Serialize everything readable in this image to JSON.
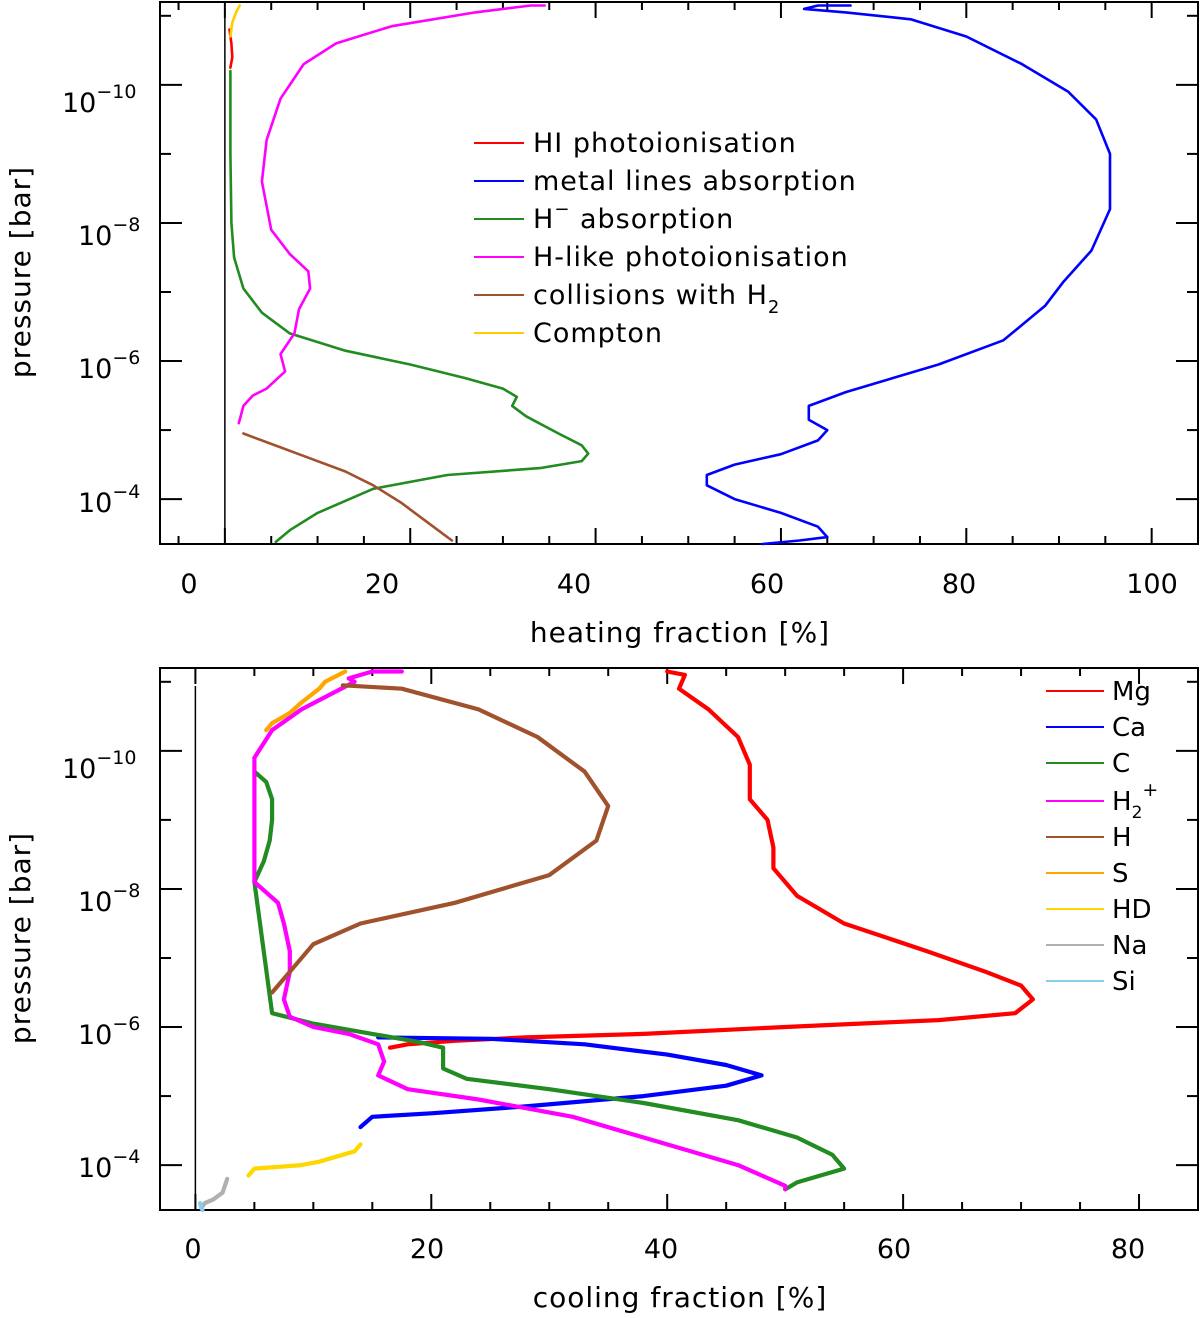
{
  "chart_data": [
    {
      "type": "line",
      "id": "heating",
      "xlabel": "heating fraction [%]",
      "ylabel": "pressure [bar]",
      "xlim": [
        -7,
        105
      ],
      "ylim_log10": [
        -11.2,
        -3.35
      ],
      "y_scale": "log",
      "xticks": [
        0,
        20,
        40,
        60,
        80,
        100
      ],
      "xtick_labels": [
        "0",
        "20",
        "40",
        "60",
        "80",
        "100"
      ],
      "yticks": [
        -10,
        -8,
        -6,
        -4
      ],
      "ytick_labels": [
        {
          "base": "10",
          "exp": "−10"
        },
        {
          "base": "10",
          "exp": "−8"
        },
        {
          "base": "10",
          "exp": "−6"
        },
        {
          "base": "10",
          "exp": "−4"
        }
      ],
      "reference_line_x": 0,
      "legend_position": "upper-center",
      "series": [
        {
          "name": "HI photoionisation",
          "label": "HI photoionisation",
          "color": "#ff0000",
          "points": [
            [
              0.5,
              -10.8
            ],
            [
              0.7,
              -10.6
            ],
            [
              0.8,
              -10.4
            ],
            [
              0.6,
              -10.25
            ]
          ]
        },
        {
          "name": "metal lines absorption",
          "label": "metal lines absorption",
          "color": "#0000ff",
          "points": [
            [
              67.5,
              -11.15
            ],
            [
              64,
              -11.15
            ],
            [
              62.5,
              -11.1
            ],
            [
              67,
              -11.05
            ],
            [
              74,
              -10.95
            ],
            [
              80,
              -10.7
            ],
            [
              86,
              -10.3
            ],
            [
              91,
              -9.9
            ],
            [
              94,
              -9.5
            ],
            [
              95.5,
              -9.0
            ],
            [
              95.5,
              -8.2
            ],
            [
              93.5,
              -7.6
            ],
            [
              90.5,
              -7.15
            ],
            [
              88.5,
              -6.8
            ],
            [
              84,
              -6.3
            ],
            [
              77,
              -5.95
            ],
            [
              72,
              -5.75
            ],
            [
              67,
              -5.55
            ],
            [
              63,
              -5.35
            ],
            [
              63,
              -5.15
            ],
            [
              65,
              -5.0
            ],
            [
              64,
              -4.85
            ],
            [
              60,
              -4.65
            ],
            [
              55,
              -4.5
            ],
            [
              52,
              -4.35
            ],
            [
              52,
              -4.2
            ],
            [
              55,
              -4.0
            ],
            [
              60,
              -3.8
            ],
            [
              64,
              -3.6
            ],
            [
              65,
              -3.45
            ],
            [
              62,
              -3.4
            ],
            [
              58,
              -3.35
            ]
          ]
        },
        {
          "name": "H- absorption",
          "label_main": "H",
          "label_sup": "−",
          "label_rest": " absorption",
          "color": "#228b22",
          "points": [
            [
              0.6,
              -10.2
            ],
            [
              0.6,
              -9.0
            ],
            [
              0.7,
              -8.0
            ],
            [
              1.0,
              -7.5
            ],
            [
              2.0,
              -7.05
            ],
            [
              4.0,
              -6.7
            ],
            [
              7.0,
              -6.4
            ],
            [
              13.0,
              -6.15
            ],
            [
              20.0,
              -5.95
            ],
            [
              26.0,
              -5.75
            ],
            [
              30.0,
              -5.6
            ],
            [
              31.5,
              -5.48
            ],
            [
              31.0,
              -5.35
            ],
            [
              32.5,
              -5.2
            ],
            [
              36.0,
              -4.95
            ],
            [
              38.5,
              -4.78
            ],
            [
              39.2,
              -4.66
            ],
            [
              38.5,
              -4.55
            ],
            [
              34.0,
              -4.45
            ],
            [
              24.0,
              -4.35
            ],
            [
              16.0,
              -4.15
            ],
            [
              10.0,
              -3.8
            ],
            [
              7.0,
              -3.55
            ],
            [
              5.5,
              -3.38
            ]
          ]
        },
        {
          "name": "H-like photoionisation",
          "label": "H-like photoionisation",
          "color": "#ff00ff",
          "points": [
            [
              34.5,
              -11.15
            ],
            [
              33.0,
              -11.15
            ],
            [
              27.0,
              -11.05
            ],
            [
              18.0,
              -10.85
            ],
            [
              12.0,
              -10.6
            ],
            [
              8.5,
              -10.3
            ],
            [
              6.0,
              -9.8
            ],
            [
              4.5,
              -9.2
            ],
            [
              4.0,
              -8.6
            ],
            [
              5.0,
              -7.9
            ],
            [
              7.0,
              -7.55
            ],
            [
              9.0,
              -7.3
            ],
            [
              9.2,
              -7.05
            ],
            [
              8.0,
              -6.75
            ],
            [
              7.5,
              -6.4
            ],
            [
              6.0,
              -6.1
            ],
            [
              6.5,
              -5.85
            ],
            [
              4.5,
              -5.6
            ],
            [
              3.0,
              -5.5
            ],
            [
              2.0,
              -5.35
            ],
            [
              1.5,
              -5.1
            ]
          ]
        },
        {
          "name": "collisions with H2",
          "label_main": "collisions with H",
          "label_sub": "2",
          "color": "#a0522d",
          "points": [
            [
              2.0,
              -4.95
            ],
            [
              5.0,
              -4.8
            ],
            [
              9.0,
              -4.6
            ],
            [
              13.0,
              -4.4
            ],
            [
              16.0,
              -4.2
            ],
            [
              19.0,
              -3.95
            ],
            [
              22.0,
              -3.65
            ],
            [
              24.5,
              -3.4
            ]
          ]
        },
        {
          "name": "Compton",
          "label": "Compton",
          "color": "#ffcc00",
          "points": [
            [
              0.6,
              -10.7
            ],
            [
              0.8,
              -10.9
            ],
            [
              1.2,
              -11.05
            ],
            [
              1.6,
              -11.15
            ]
          ]
        }
      ]
    },
    {
      "type": "line",
      "id": "cooling",
      "xlabel": "cooling fraction [%]",
      "ylabel": "pressure [bar]",
      "xlim": [
        -3,
        85
      ],
      "ylim_log10": [
        -11.2,
        -3.35
      ],
      "y_scale": "log",
      "xticks": [
        0,
        20,
        40,
        60,
        80
      ],
      "xtick_labels": [
        "0",
        "20",
        "40",
        "60",
        "80"
      ],
      "yticks": [
        -10,
        -8,
        -6,
        -4
      ],
      "ytick_labels": [
        {
          "base": "10",
          "exp": "−10"
        },
        {
          "base": "10",
          "exp": "−8"
        },
        {
          "base": "10",
          "exp": "−6"
        },
        {
          "base": "10",
          "exp": "−4"
        }
      ],
      "reference_line_x": 0,
      "legend_position": "upper-right",
      "series": [
        {
          "name": "Mg",
          "label": "Mg",
          "color": "#ff0000",
          "points": [
            [
              40.0,
              -11.15
            ],
            [
              41.5,
              -11.1
            ],
            [
              41.0,
              -10.9
            ],
            [
              43.5,
              -10.6
            ],
            [
              46.0,
              -10.2
            ],
            [
              47.0,
              -9.8
            ],
            [
              47.0,
              -9.3
            ],
            [
              48.5,
              -9.0
            ],
            [
              49.0,
              -8.6
            ],
            [
              49.0,
              -8.3
            ],
            [
              51.0,
              -7.9
            ],
            [
              55.0,
              -7.5
            ],
            [
              62.0,
              -7.1
            ],
            [
              67.0,
              -6.8
            ],
            [
              70.0,
              -6.6
            ],
            [
              71.0,
              -6.4
            ],
            [
              69.5,
              -6.2
            ],
            [
              63.0,
              -6.1
            ],
            [
              50.0,
              -6.0
            ],
            [
              38.0,
              -5.9
            ],
            [
              28.0,
              -5.85
            ],
            [
              22.0,
              -5.8
            ],
            [
              18.0,
              -5.75
            ],
            [
              16.5,
              -5.7
            ]
          ]
        },
        {
          "name": "Ca",
          "label": "Ca",
          "color": "#0000ff",
          "points": [
            [
              15.5,
              -5.85
            ],
            [
              25.0,
              -5.83
            ],
            [
              33.0,
              -5.75
            ],
            [
              40.0,
              -5.6
            ],
            [
              45.0,
              -5.45
            ],
            [
              48.0,
              -5.3
            ],
            [
              45.0,
              -5.15
            ],
            [
              38.0,
              -5.0
            ],
            [
              28.0,
              -4.85
            ],
            [
              20.0,
              -4.75
            ],
            [
              15.0,
              -4.7
            ],
            [
              14.0,
              -4.55
            ]
          ]
        },
        {
          "name": "C",
          "label": "C",
          "color": "#228b22",
          "points": [
            [
              5.0,
              -9.7
            ],
            [
              6.0,
              -9.55
            ],
            [
              6.5,
              -9.3
            ],
            [
              6.5,
              -9.0
            ],
            [
              6.3,
              -8.7
            ],
            [
              5.8,
              -8.4
            ],
            [
              5.0,
              -8.1
            ],
            [
              6.5,
              -6.2
            ],
            [
              10.0,
              -6.05
            ],
            [
              15.0,
              -5.9
            ],
            [
              19.0,
              -5.78
            ],
            [
              21.0,
              -5.7
            ],
            [
              21.0,
              -5.4
            ],
            [
              23.0,
              -5.25
            ],
            [
              30.0,
              -5.1
            ],
            [
              38.0,
              -4.9
            ],
            [
              46.0,
              -4.65
            ],
            [
              51.0,
              -4.4
            ],
            [
              54.0,
              -4.15
            ],
            [
              55.0,
              -3.95
            ],
            [
              53.0,
              -3.85
            ],
            [
              51.0,
              -3.75
            ],
            [
              50.0,
              -3.65
            ]
          ]
        },
        {
          "name": "H2+",
          "label_main": "H",
          "label_sub": "2",
          "label_sup": "+",
          "color": "#ff00ff",
          "points": [
            [
              17.5,
              -11.15
            ],
            [
              15.0,
              -11.15
            ],
            [
              13.0,
              -11.05
            ],
            [
              13.5,
              -11.0
            ],
            [
              9.0,
              -10.6
            ],
            [
              6.5,
              -10.3
            ],
            [
              5.0,
              -9.9
            ],
            [
              5.0,
              -9.7
            ],
            [
              5.0,
              -8.1
            ],
            [
              7.0,
              -7.8
            ],
            [
              7.5,
              -7.5
            ],
            [
              8.0,
              -7.1
            ],
            [
              8.0,
              -6.8
            ],
            [
              7.5,
              -6.4
            ],
            [
              8.0,
              -6.15
            ],
            [
              10.0,
              -6.0
            ],
            [
              13.0,
              -5.9
            ],
            [
              15.5,
              -5.75
            ],
            [
              16.0,
              -5.5
            ],
            [
              15.5,
              -5.3
            ],
            [
              18.0,
              -5.1
            ],
            [
              24.0,
              -4.95
            ],
            [
              32.0,
              -4.7
            ],
            [
              40.0,
              -4.3
            ],
            [
              46.0,
              -4.0
            ],
            [
              50.0,
              -3.7
            ],
            [
              50.0,
              -3.65
            ]
          ]
        },
        {
          "name": "H",
          "label": "H",
          "color": "#a0522d",
          "points": [
            [
              12.5,
              -10.95
            ],
            [
              17.5,
              -10.9
            ],
            [
              24.0,
              -10.6
            ],
            [
              29.0,
              -10.2
            ],
            [
              33.0,
              -9.7
            ],
            [
              35.0,
              -9.2
            ],
            [
              34.0,
              -8.7
            ],
            [
              30.0,
              -8.2
            ],
            [
              22.0,
              -7.8
            ],
            [
              14.0,
              -7.5
            ],
            [
              10.0,
              -7.2
            ],
            [
              8.0,
              -6.8
            ],
            [
              6.5,
              -6.5
            ]
          ]
        },
        {
          "name": "S",
          "label": "S",
          "color": "#ffa500",
          "points": [
            [
              12.7,
              -11.15
            ],
            [
              11.0,
              -11.0
            ],
            [
              10.5,
              -10.9
            ],
            [
              9.0,
              -10.7
            ],
            [
              8.0,
              -10.55
            ],
            [
              6.5,
              -10.4
            ],
            [
              6.0,
              -10.3
            ]
          ]
        },
        {
          "name": "HD",
          "label": "HD",
          "color": "#ffd700",
          "points": [
            [
              14.0,
              -4.3
            ],
            [
              13.5,
              -4.2
            ],
            [
              10.5,
              -4.05
            ],
            [
              9.0,
              -4.0
            ],
            [
              5.0,
              -3.95
            ],
            [
              4.5,
              -3.85
            ]
          ]
        },
        {
          "name": "Na",
          "label": "Na",
          "color": "#b0b0b0",
          "points": [
            [
              2.7,
              -3.8
            ],
            [
              2.3,
              -3.6
            ],
            [
              1.5,
              -3.5
            ],
            [
              0.8,
              -3.45
            ],
            [
              0.6,
              -3.4
            ]
          ]
        },
        {
          "name": "Si",
          "label": "Si",
          "color": "#87ceeb",
          "points": [
            [
              0.4,
              -3.45
            ],
            [
              0.5,
              -3.38
            ],
            [
              0.6,
              -3.35
            ]
          ]
        }
      ]
    }
  ]
}
